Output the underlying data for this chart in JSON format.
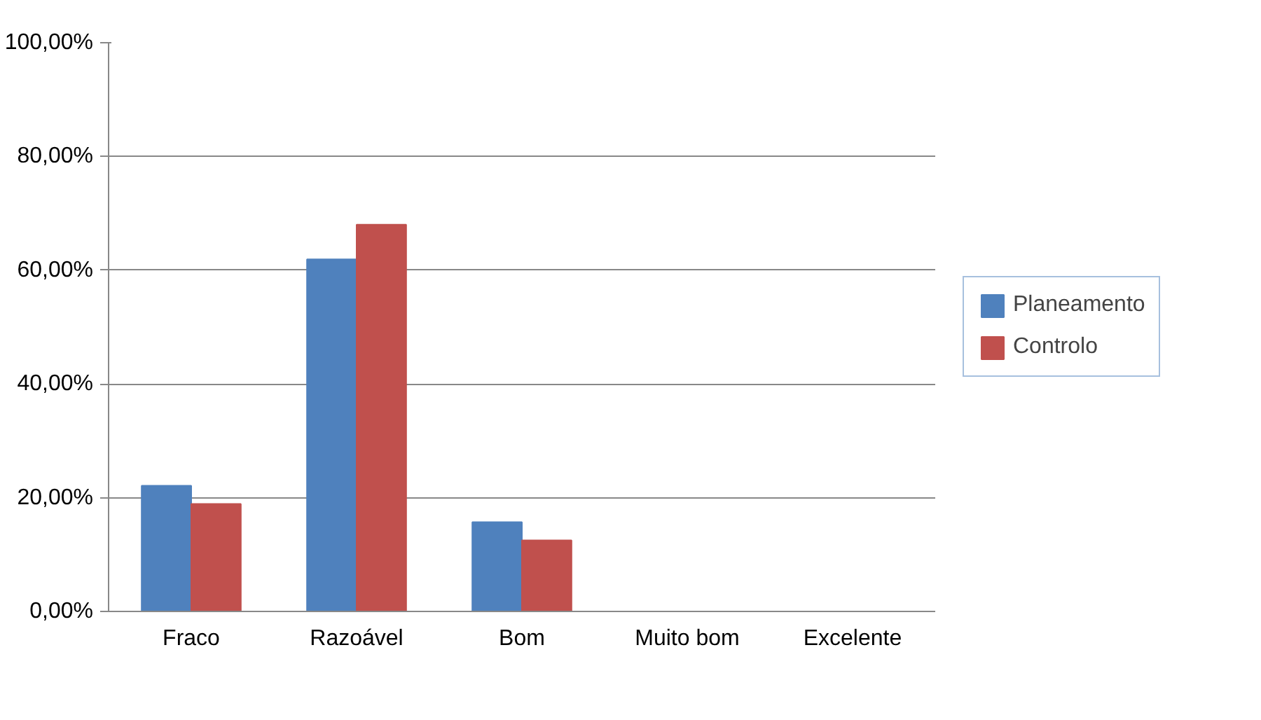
{
  "chart_data": {
    "type": "bar",
    "categories": [
      "Fraco",
      "Razoável",
      "Bom",
      "Muito bom",
      "Excelente"
    ],
    "series": [
      {
        "name": "Planeamento",
        "color": "#4f81bd",
        "values": [
          22.1,
          61.9,
          15.7,
          0,
          0
        ]
      },
      {
        "name": "Controlo",
        "color": "#c0504d",
        "values": [
          18.9,
          68.0,
          12.5,
          0,
          0
        ]
      }
    ],
    "ylim": [
      0,
      100
    ],
    "yticks": [
      {
        "value": 0,
        "label": "0,00%"
      },
      {
        "value": 20,
        "label": "20,00%"
      },
      {
        "value": 40,
        "label": "40,00%"
      },
      {
        "value": 60,
        "label": "60,00%"
      },
      {
        "value": 80,
        "label": "80,00%"
      },
      {
        "value": 100,
        "label": "100,00%"
      }
    ],
    "grid": "y",
    "legend": "right"
  }
}
